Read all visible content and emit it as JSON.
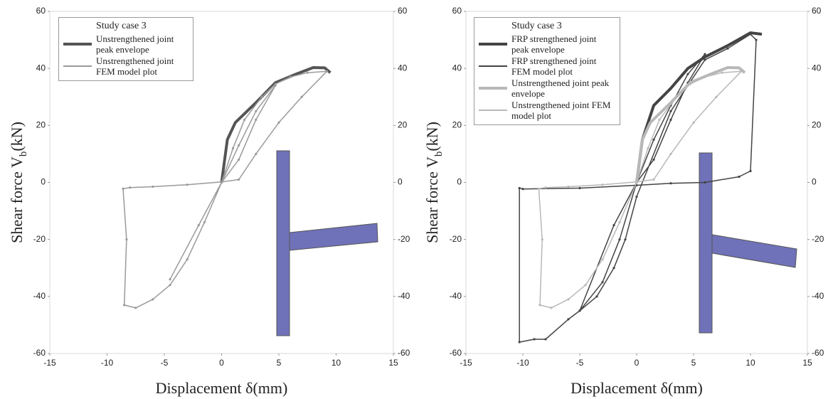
{
  "chart_data": [
    {
      "type": "line",
      "legend_title": "Study case 3",
      "xlabel": "Displacement δ(mm)",
      "ylabel": {
        "main": "Shear force V",
        "sub": "b",
        "unit": "(kN)"
      },
      "xlim": [
        -15,
        15
      ],
      "xticks": [
        -15,
        -10,
        -5,
        0,
        5,
        10,
        15
      ],
      "ylim": [
        -60,
        60
      ],
      "yticks": [
        -60,
        -40,
        -20,
        0,
        20,
        40,
        60
      ],
      "y2lim": [
        -60,
        60
      ],
      "y2ticks": [
        -60,
        -40,
        -20,
        0,
        20,
        40,
        60
      ],
      "grid": false,
      "legend": "upper left",
      "series": [
        {
          "name": "Unstrengthened joint peak envelope",
          "color": "#555555",
          "width": 4,
          "markers": false,
          "x": [
            0,
            0.5,
            1.2,
            3,
            4.7,
            6.5,
            8,
            9,
            9.5
          ],
          "values": [
            0,
            15,
            21,
            28,
            35,
            38,
            40.3,
            40.2,
            38.5
          ]
        },
        {
          "name": "Unstrengthened joint FEM model plot",
          "color": "#9a9a9a",
          "width": 1.5,
          "markers": true,
          "x": [
            0,
            1,
            2,
            3.5,
            4.7,
            6,
            7.5,
            9.2,
            7,
            5,
            3,
            1.5,
            0,
            -3,
            -6,
            -8,
            -8.6,
            -8.3,
            -8.5,
            -7.5,
            -6,
            -4.5,
            -3,
            -1.5,
            0,
            1.5,
            3,
            4.7,
            3,
            1.5,
            0,
            -2,
            -4.5
          ],
          "values": [
            0,
            12,
            22,
            30,
            34.5,
            37,
            38.5,
            39,
            30,
            21,
            10,
            1,
            0.2,
            -0.8,
            -1.5,
            -1.8,
            -2.2,
            -20,
            -43,
            -44,
            -41,
            -36,
            -27,
            -14,
            0,
            13,
            25,
            34,
            22,
            8,
            0,
            -15,
            -34
          ]
        }
      ]
    },
    {
      "type": "line",
      "legend_title": "Study case 3",
      "xlabel": "Displacement δ(mm)",
      "ylabel": {
        "main": "Shear force V",
        "sub": "b",
        "unit": "(kN)"
      },
      "xlim": [
        -15,
        15
      ],
      "xticks": [
        -15,
        -10,
        -5,
        0,
        5,
        10,
        15
      ],
      "ylim": [
        -60,
        60
      ],
      "yticks": [
        -60,
        -40,
        -20,
        0,
        20,
        40,
        60
      ],
      "y2lim": [
        -60,
        60
      ],
      "y2ticks": [
        -60,
        -40,
        -20,
        0,
        20,
        40,
        60
      ],
      "grid": false,
      "legend": "upper left",
      "series": [
        {
          "name": "FRP strengthened joint peak envelope",
          "color": "#444444",
          "width": 4,
          "markers": false,
          "x": [
            0,
            0.5,
            1.5,
            3,
            4.5,
            6,
            8,
            10,
            11
          ],
          "values": [
            0,
            15,
            27,
            33,
            40,
            44,
            48,
            52.5,
            52
          ]
        },
        {
          "name": "FRP strengthened joint FEM model plot",
          "color": "#444444",
          "width": 1.5,
          "markers": true,
          "x": [
            0,
            1.5,
            3,
            4.5,
            6,
            4.5,
            3,
            1.5,
            0,
            -2,
            -5,
            -3.5,
            -2,
            -1,
            0,
            3,
            6,
            8,
            10,
            10.5,
            10,
            9,
            6,
            3,
            0,
            -5,
            -10,
            -10.3,
            -10.3,
            -9,
            -8,
            -6,
            -5,
            -3,
            -1.5,
            0
          ],
          "values": [
            0,
            15,
            27,
            38,
            45,
            35,
            22,
            8,
            0,
            -15,
            -45,
            -40,
            -30,
            -20,
            -5,
            25,
            43,
            47,
            52,
            50,
            4,
            2,
            0,
            -0.3,
            -1,
            -2,
            -2.3,
            -2,
            -56,
            -55,
            -55,
            -48,
            -45,
            -35,
            -20,
            0
          ]
        },
        {
          "name": "Unstrengthened joint peak envelope",
          "color": "#b8b8b8",
          "width": 4,
          "markers": false,
          "x": [
            0,
            0.5,
            1.2,
            3,
            4.7,
            6.5,
            8,
            9,
            9.5
          ],
          "values": [
            0,
            15,
            21,
            28,
            35,
            38,
            40.3,
            40.2,
            38.5
          ]
        },
        {
          "name": "Unstrengthened joint FEM model plot",
          "color": "#b8b8b8",
          "width": 1.5,
          "markers": true,
          "x": [
            0,
            1,
            2,
            3.5,
            4.7,
            6,
            7.5,
            9.2,
            7,
            5,
            3,
            1.5,
            0,
            -3,
            -6,
            -8,
            -8.6,
            -8.3,
            -8.5,
            -7.5,
            -6,
            -4.5,
            -3,
            -1.5,
            0
          ],
          "values": [
            0,
            12,
            22,
            30,
            34.5,
            37,
            38.5,
            39,
            30,
            21,
            10,
            1,
            0.2,
            -0.8,
            -1.5,
            -1.8,
            -2.2,
            -20,
            -43,
            -44,
            -41,
            -36,
            -27,
            -14,
            0
          ]
        }
      ]
    }
  ]
}
